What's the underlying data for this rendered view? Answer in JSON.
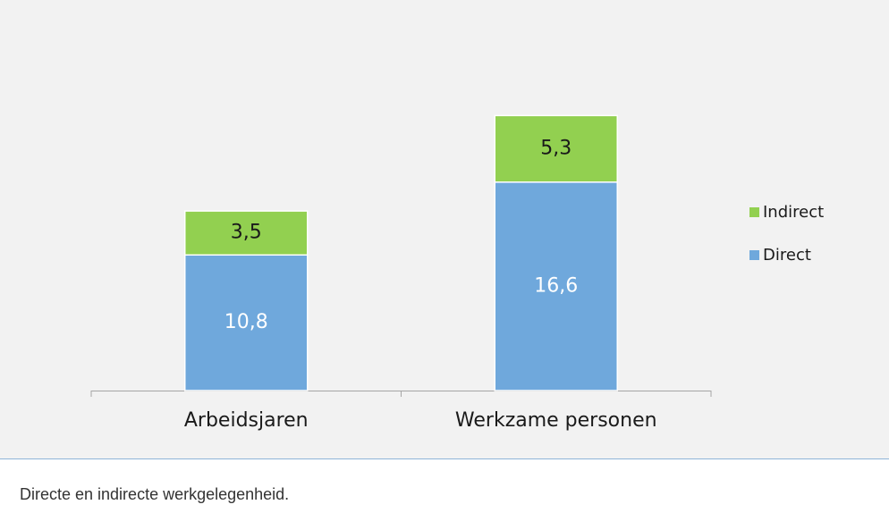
{
  "chart_data": {
    "type": "stacked_bar",
    "categories": [
      "Arbeidsjaren",
      "Werkzame personen"
    ],
    "series": [
      {
        "name": "Direct",
        "color": "#6fa8dc",
        "label_color": "#ffffff",
        "values": [
          10.8,
          16.6
        ],
        "value_labels": [
          "10,8",
          "16,6"
        ]
      },
      {
        "name": "Indirect",
        "color": "#92d050",
        "label_color": "#1a1a1a",
        "values": [
          3.5,
          5.3
        ],
        "value_labels": [
          "3,5",
          "5,3"
        ]
      }
    ],
    "legend": "right",
    "caption": "Directe en indirecte werkgelegenheid."
  }
}
